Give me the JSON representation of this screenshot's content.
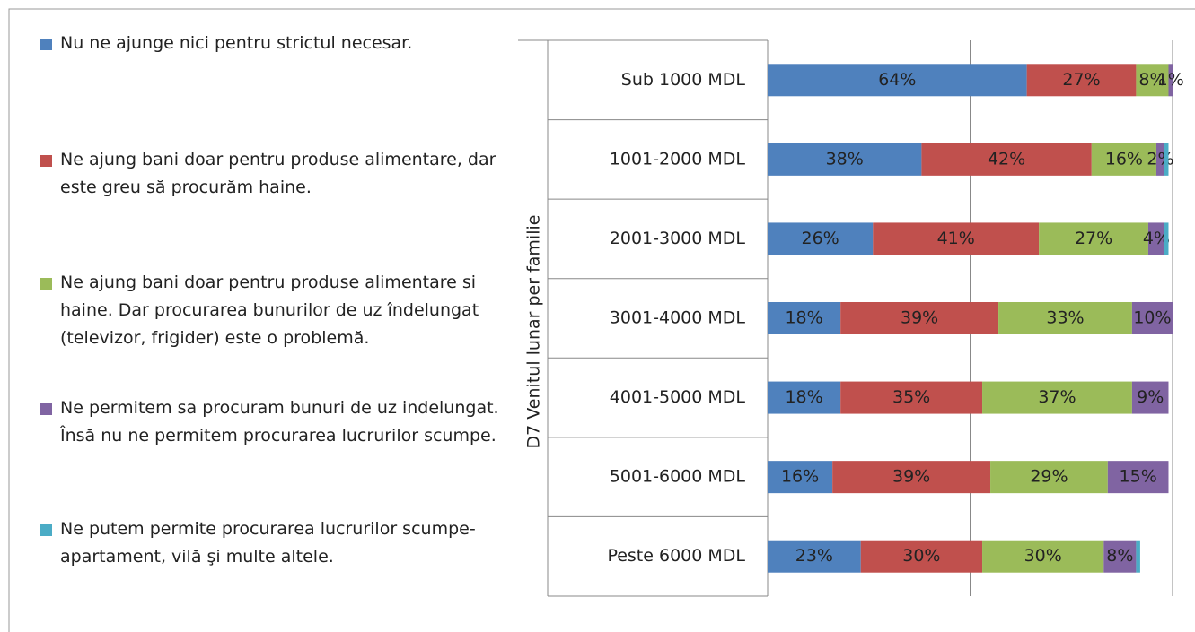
{
  "chart_data": {
    "type": "stacked_bar_horizontal",
    "y_axis_label": "D7 Venitul lunar per familie",
    "categories": [
      "Sub 1000 MDL",
      "1001-2000 MDL",
      "2001-3000 MDL",
      "3001-4000 MDL",
      "4001-5000 MDL",
      "5001-6000 MDL",
      "Peste 6000 MDL"
    ],
    "xlim": [
      0,
      100
    ],
    "xticks": [
      0,
      50,
      100
    ],
    "grid": true,
    "legend": "left",
    "series": [
      {
        "name": "Nu ne ajunge nici pentru strictul necesar.",
        "color": "#4f81bd",
        "values": [
          64,
          38,
          26,
          18,
          18,
          16,
          23
        ],
        "value_labels": [
          "64%",
          "38%",
          "26%",
          "18%",
          "18%",
          "16%",
          "23%"
        ]
      },
      {
        "name": "Ne ajung bani doar pentru produse alimentare, dar este greu să procurăm haine.",
        "color": "#c0504d",
        "values": [
          27,
          42,
          41,
          39,
          35,
          39,
          30
        ],
        "value_labels": [
          "27%",
          "42%",
          "41%",
          "39%",
          "35%",
          "39%",
          "30%"
        ]
      },
      {
        "name": "Ne ajung bani doar pentru produse alimentare si haine.  Dar procurarea bunurilor de uz îndelungat (televizor, frigider) este o problemă.",
        "color": "#9bbb59",
        "values": [
          8,
          16,
          27,
          33,
          37,
          29,
          30
        ],
        "value_labels": [
          "8%",
          "16%",
          "27%",
          "33%",
          "37%",
          "29%",
          "30%"
        ]
      },
      {
        "name": "Ne permitem sa procuram bunuri de uz indelungat. Însă nu ne permitem procurarea lucrurilor scumpe.",
        "color": "#8064a2",
        "values": [
          1,
          2,
          4,
          10,
          9,
          15,
          8
        ],
        "value_labels": [
          "1%",
          "2%",
          "4%",
          "10%",
          "9%",
          "15%",
          "8%"
        ]
      },
      {
        "name": "Ne putem permite procurarea lucrurilor scumpe-apartament, vilă şi multe altele.",
        "color": "#4bacc6",
        "values": [
          0,
          1,
          1,
          0,
          0,
          0,
          1
        ],
        "value_labels": [
          null,
          null,
          null,
          null,
          null,
          null,
          null
        ]
      }
    ]
  }
}
